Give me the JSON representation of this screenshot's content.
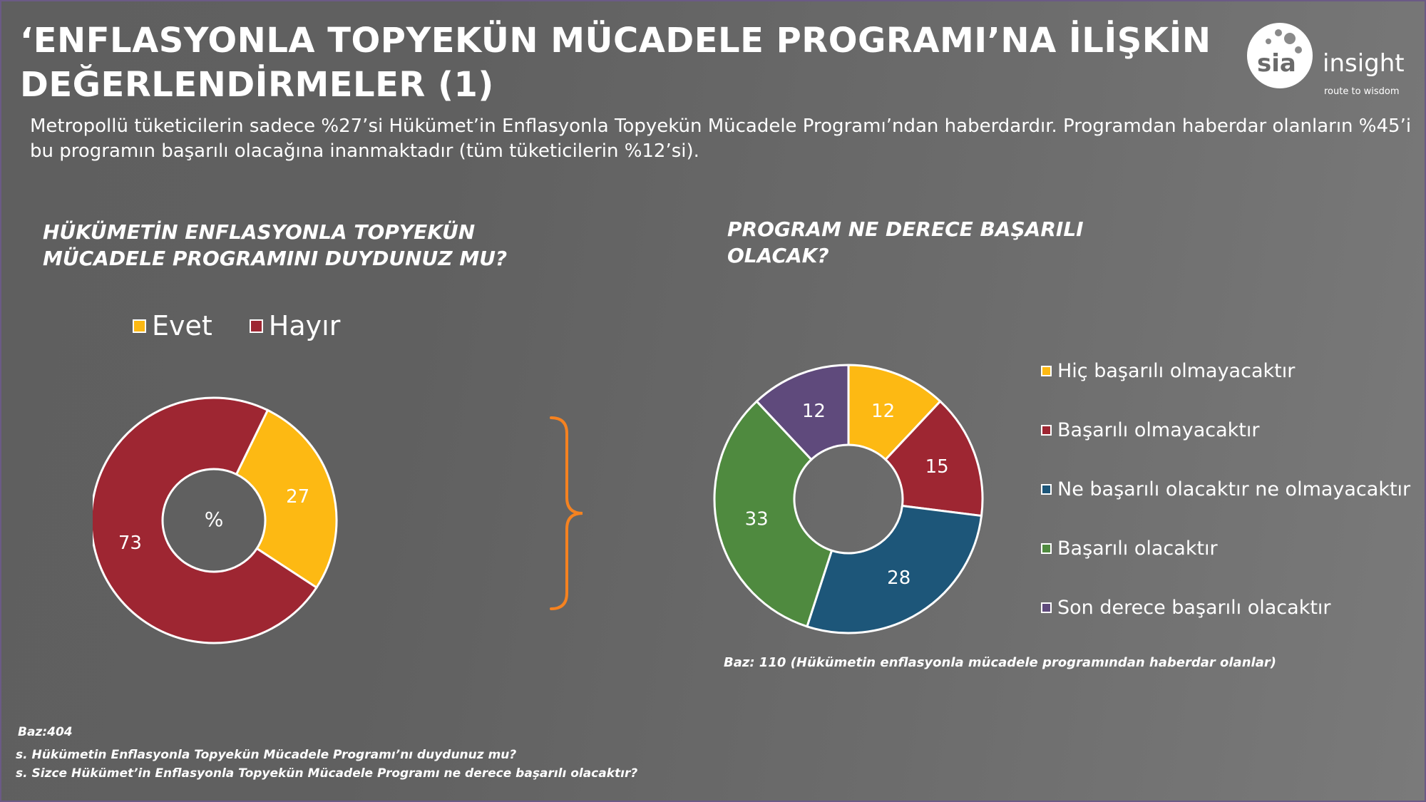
{
  "title": "‘ENFLASYONLA TOPYEKÜN MÜCADELE PROGRAMI’NA İLİŞKİN DEĞERLENDİRMELER (1)",
  "subtitle": "Metropollü tüketicilerin sadece %27’si Hükümet’in Enflasyonla Topyekün Mücadele Programı’ndan haberdardır. Programdan haberdar olanların %45’i bu programın başarılı olacağına inanmaktadır (tüm tüketicilerin %12’si).",
  "logo": {
    "brand": "sia",
    "word": "insight",
    "tagline": "route to wisdom"
  },
  "chart_data": [
    {
      "type": "pie",
      "title": "HÜKÜMETİN ENFLASYONLA TOPYEKÜN MÜCADELE PROGRAMINI DUYDUNUZ MU?",
      "center_label": "%",
      "categories": [
        "Evet",
        "Hayır"
      ],
      "values": [
        27,
        73
      ],
      "colors": [
        "#fdb913",
        "#9e2632"
      ],
      "legend_position": "top"
    },
    {
      "type": "pie",
      "title": "PROGRAM NE DERECE BAŞARILI OLACAK?",
      "categories": [
        "Hiç başarılı olmayacaktır",
        "Başarılı olmayacaktır",
        "Ne başarılı olacaktır ne olmayacaktır",
        "Başarılı olacaktır",
        "Son derece başarılı olacaktır"
      ],
      "values": [
        12,
        15,
        28,
        33,
        12
      ],
      "colors": [
        "#fdb913",
        "#9e2632",
        "#1d5679",
        "#4f8a3f",
        "#5f4a7c"
      ],
      "legend_position": "right"
    }
  ],
  "base_right": "Baz: 110 (Hükümetin enflasyonla mücadele programından haberdar olanlar)",
  "base_left": "Baz:404",
  "footnotes": [
    "s. Hükümetin Enflasyonla Topyekün Mücadele Programı’nı duydunuz mu?",
    "s. Sizce Hükümet’in Enflasyonla Topyekün Mücadele Programı ne derece başarılı olacaktır?"
  ],
  "colors": {
    "bracket": "#f58220",
    "frame": "#6b5a86"
  }
}
